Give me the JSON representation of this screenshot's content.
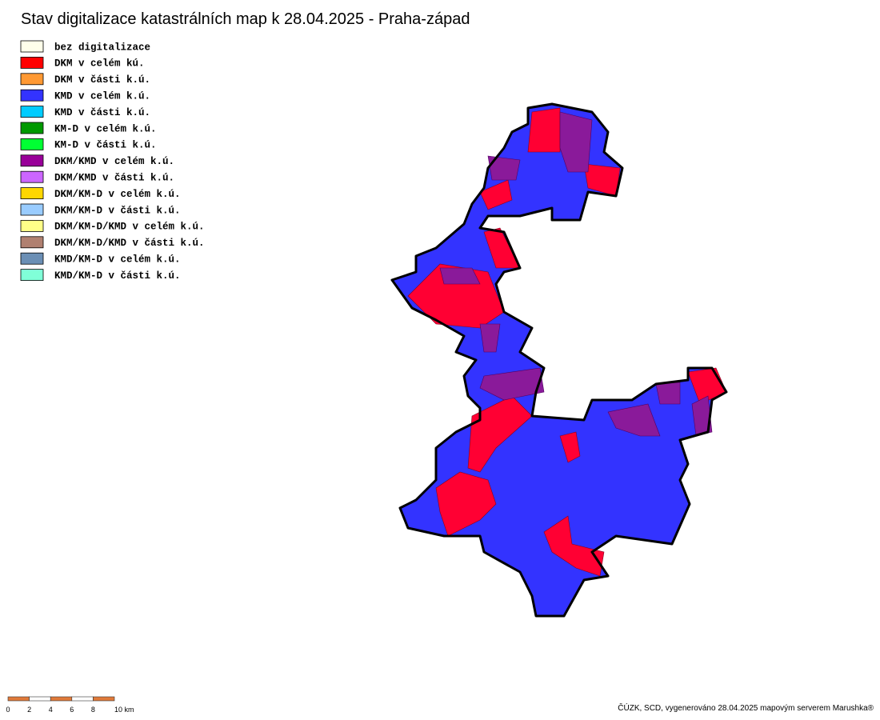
{
  "header": {
    "title": "Stav digitalizace katastrálních map k 28.04.2025 - Praha-západ"
  },
  "legend": {
    "items": [
      {
        "label": "bez digitalizace",
        "color": "#ffffea"
      },
      {
        "label": "DKM v celém kú.",
        "color": "#ff0000"
      },
      {
        "label": "DKM v části k.ú.",
        "color": "#ff9933"
      },
      {
        "label": "KMD v celém k.ú.",
        "color": "#3333ff"
      },
      {
        "label": "KMD v části k.ú.",
        "color": "#00ccff"
      },
      {
        "label": "KM-D v celém k.ú.",
        "color": "#009900"
      },
      {
        "label": "KM-D v části k.ú.",
        "color": "#00ff33"
      },
      {
        "label": "DKM/KMD v celém k.ú.",
        "color": "#990099"
      },
      {
        "label": "DKM/KMD v části k.ú.",
        "color": "#cc66ff"
      },
      {
        "label": "DKM/KM-D v celém k.ú.",
        "color": "#ffd700"
      },
      {
        "label": "DKM/KM-D v části k.ú.",
        "color": "#99ccff"
      },
      {
        "label": "DKM/KM-D/KMD v celém k.ú.",
        "color": "#ffff88"
      },
      {
        "label": "DKM/KM-D/KMD v části k.ú.",
        "color": "#b08070"
      },
      {
        "label": "KMD/KM-D v celém k.ú.",
        "color": "#6b8fb5"
      },
      {
        "label": "KMD/KM-D v části k.ú.",
        "color": "#80ffd8"
      }
    ]
  },
  "scale_bar": {
    "labels": [
      "0",
      "2",
      "4",
      "6",
      "8",
      "10 km"
    ]
  },
  "footer": {
    "credit": "ČÚZK, SCD, vygenerováno 28.04.2025 mapovým serverem Marushka®"
  }
}
